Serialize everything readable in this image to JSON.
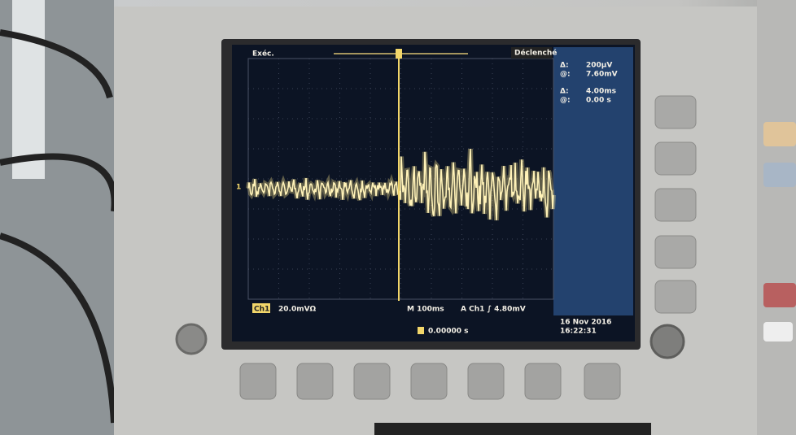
{
  "screen": {
    "run_state": "Exéc.",
    "trigger_state": "Déclenché",
    "channel_marker": "1",
    "cursor_readout": [
      {
        "symbol": "Δ:",
        "value": "200µV"
      },
      {
        "symbol": "@:",
        "value": "7.60mV"
      },
      {
        "symbol": "Δ:",
        "value": "4.00ms"
      },
      {
        "symbol": "@:",
        "value": "0.00 s"
      }
    ],
    "channel_label": "Ch1",
    "channel_scale": "20.0mVΩ",
    "timebase": "M 100ms",
    "trigger_info": "A Ch1 ∫ 4.80mV",
    "trigger_position": "0.00000 s",
    "date": "16 Nov 2016",
    "time": "16:22:31"
  }
}
